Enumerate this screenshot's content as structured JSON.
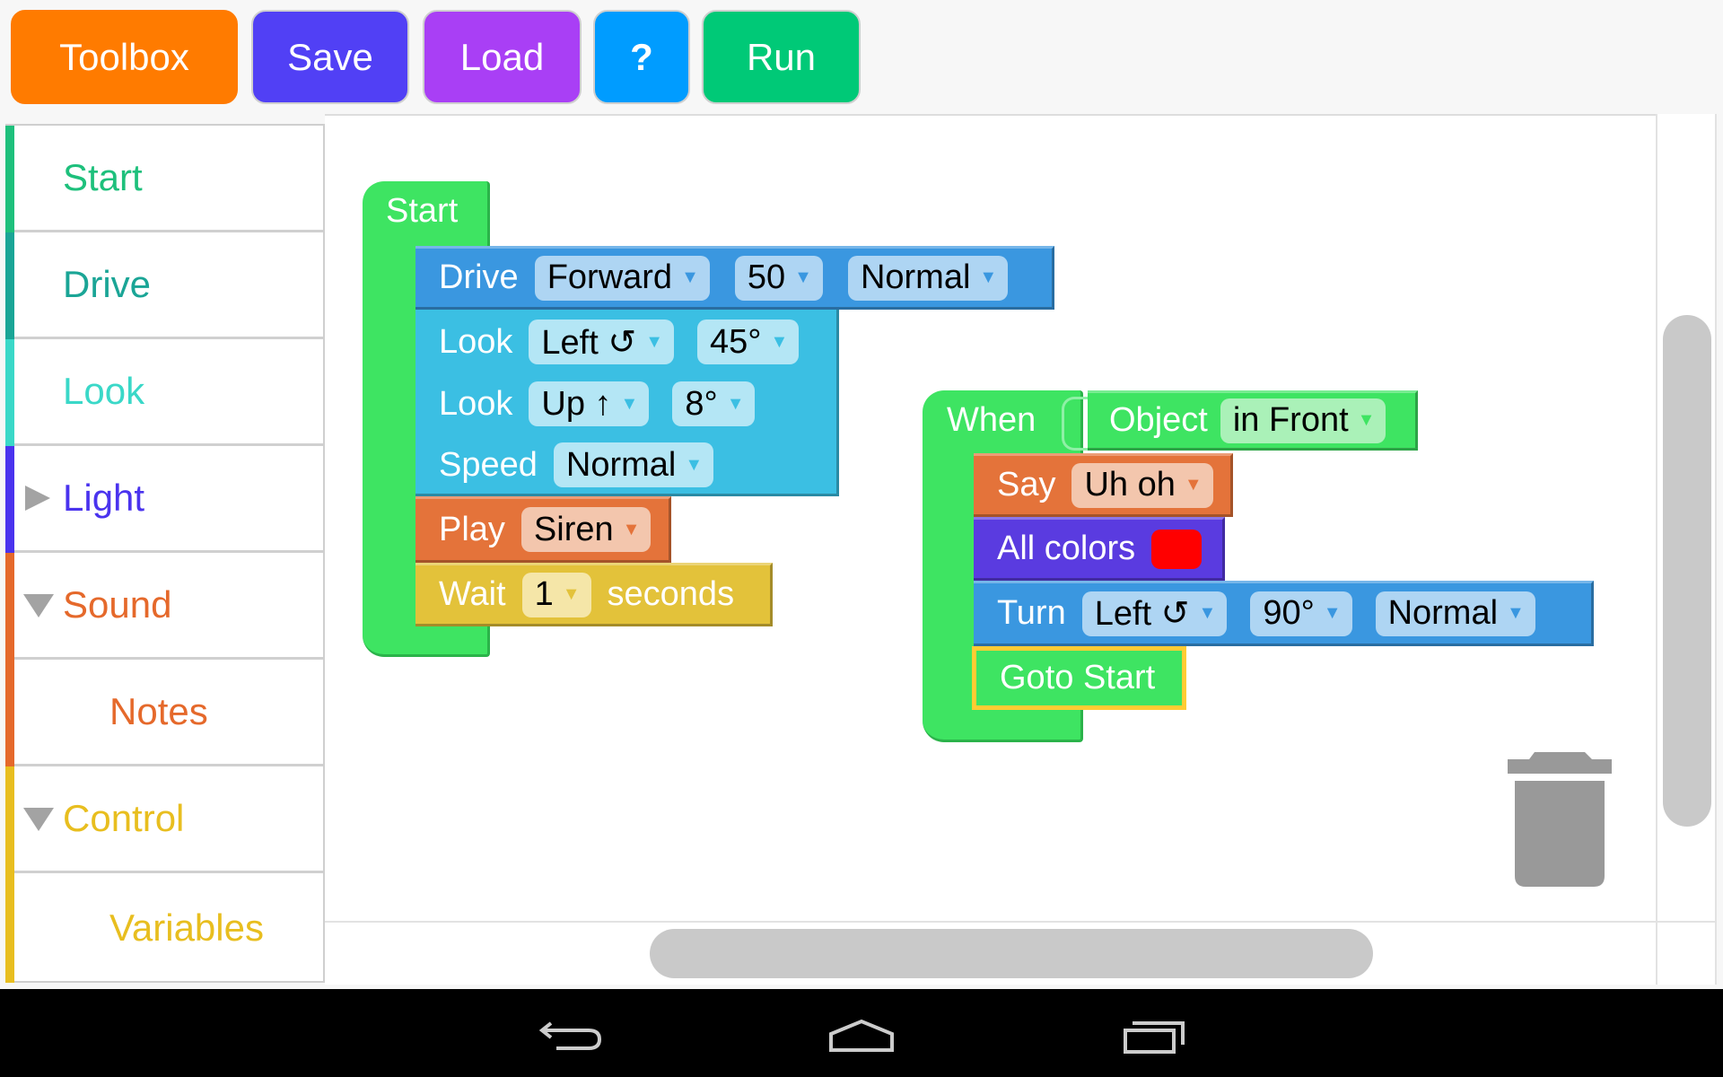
{
  "toolbar": {
    "toolbox": "Toolbox",
    "save": "Save",
    "load": "Load",
    "help": "?",
    "run": "Run",
    "colors": {
      "toolbox": "#ff7b00",
      "save": "#5140f5",
      "load": "#a93ff5",
      "help": "#009cff",
      "run": "#00c977"
    }
  },
  "sidebar": {
    "items": [
      {
        "label": "Start",
        "color": "#1ec07c",
        "state": "none"
      },
      {
        "label": "Drive",
        "color": "#1aa596",
        "state": "none"
      },
      {
        "label": "Look",
        "color": "#3ad8c8",
        "state": "none"
      },
      {
        "label": "Light",
        "color": "#4a33ee",
        "state": "collapsed"
      },
      {
        "label": "Sound",
        "color": "#e5692b",
        "state": "expanded"
      },
      {
        "label": "Notes",
        "color": "#e5692b",
        "state": "child"
      },
      {
        "label": "Control",
        "color": "#e8be1f",
        "state": "expanded"
      },
      {
        "label": "Variables",
        "color": "#e8be1f",
        "state": "child"
      }
    ]
  },
  "workspace": {
    "start_stack": {
      "label": "Start",
      "drive": {
        "label": "Drive",
        "fields": [
          "Forward",
          "50",
          "Normal"
        ]
      },
      "look1": {
        "label": "Look",
        "fields": [
          "Left ↺",
          "45°"
        ]
      },
      "look2": {
        "label": "Look",
        "fields": [
          "Up ↑",
          "8°"
        ]
      },
      "speed": {
        "label": "Speed",
        "fields": [
          "Normal"
        ]
      },
      "play": {
        "label": "Play",
        "fields": [
          "Siren"
        ]
      },
      "wait": {
        "label": "Wait",
        "fields": [
          "1"
        ],
        "suffix": "seconds"
      }
    },
    "when_stack": {
      "label": "When",
      "condition": {
        "label": "Object",
        "fields": [
          "in Front"
        ]
      },
      "say": {
        "label": "Say",
        "fields": [
          "Uh oh"
        ]
      },
      "all_colors": {
        "label": "All colors",
        "color": "#ff0000"
      },
      "turn": {
        "label": "Turn",
        "fields": [
          "Left ↺",
          "90°",
          "Normal"
        ]
      },
      "goto": {
        "label": "Goto Start"
      }
    },
    "trash_icon": "trash-icon"
  },
  "navbar": {
    "icons": [
      "back-icon",
      "home-icon",
      "recent-apps-icon"
    ]
  }
}
